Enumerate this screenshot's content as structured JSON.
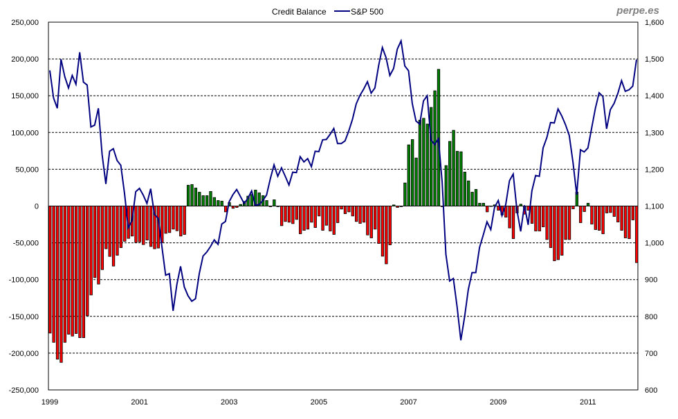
{
  "chart_data": {
    "type": "bar+line",
    "title": "",
    "watermark": "perpe.es",
    "legend": {
      "placement": "top-center",
      "entries": [
        "Credit Balance",
        "S&P 500"
      ]
    },
    "grid": {
      "horizontal": true,
      "style": "dashed"
    },
    "x_interval": "month",
    "x_start": "1999-01",
    "x_ticks": [
      "1999",
      "2001",
      "2003",
      "2005",
      "2007",
      "2009",
      "2011"
    ],
    "y_left": {
      "range": [
        -250000,
        250000
      ],
      "step": 50000,
      "ticks": [
        "250,000",
        "200,000",
        "150,000",
        "100,000",
        "50,000",
        "0",
        "-50,000",
        "-100,000",
        "-150,000",
        "-200,000",
        "-250,000"
      ]
    },
    "y_right": {
      "range": [
        600,
        1600
      ],
      "step": 100,
      "ticks": [
        "1,600",
        "1,500",
        "1,400",
        "1,300",
        "1,200",
        "1,100",
        "1,000",
        "900",
        "800",
        "700",
        "600"
      ]
    },
    "colors": {
      "positive_bar": "#008000",
      "negative_bar": "#ff0000",
      "line": "#000080"
    },
    "series": [
      {
        "name": "Credit Balance",
        "type": "bar",
        "axis": "left",
        "values": [
          -172700,
          -185300,
          -208200,
          -212600,
          -185300,
          -174300,
          -176800,
          -173300,
          -179000,
          -179000,
          -149200,
          -120900,
          -97300,
          -106100,
          -86400,
          -58100,
          -68500,
          -81600,
          -66900,
          -56500,
          -48000,
          -44000,
          -40800,
          -49600,
          -48700,
          -52400,
          -46200,
          -55000,
          -58100,
          -57100,
          -49600,
          -37100,
          -36100,
          -31400,
          -33600,
          -40800,
          -38600,
          28300,
          29200,
          24500,
          18800,
          14100,
          14100,
          19800,
          11600,
          7500,
          6600,
          -7900,
          4700,
          -3100,
          -1900,
          2200,
          6300,
          13500,
          15700,
          21700,
          17900,
          14100,
          7500,
          -900,
          8500,
          -900,
          -26700,
          -21000,
          -22000,
          -23900,
          -18200,
          -37700,
          -33000,
          -31400,
          -22000,
          -29200,
          -13500,
          -33000,
          -26100,
          -33900,
          -38600,
          -22600,
          -4100,
          -10400,
          -7900,
          -13500,
          -21000,
          -23600,
          -22000,
          -39300,
          -43300,
          -31400,
          -50900,
          -68200,
          -78600,
          -52800,
          1500,
          -1900,
          -900,
          31400,
          83200,
          90400,
          65300,
          116800,
          119300,
          111500,
          134100,
          156700,
          185900,
          -900,
          55000,
          87900,
          103000,
          74400,
          73800,
          46200,
          34200,
          18800,
          22600,
          3800,
          3800,
          -7900,
          -600,
          1600,
          -5700,
          -12000,
          -15100,
          -29800,
          -44300,
          -9400,
          2500,
          -11000,
          -5700,
          -23600,
          -33900,
          -33900,
          -28300,
          -45500,
          -56500,
          -74400,
          -72900,
          -66900,
          -45500,
          -45500,
          -3800,
          19000,
          -22600,
          -7500,
          3800,
          -24500,
          -32000,
          -33000,
          -37700,
          -9400,
          -8800,
          -14100,
          -21700,
          -33000,
          -43300,
          -44300,
          -18800,
          -76900
        ]
      },
      {
        "name": "S&P 500",
        "type": "line",
        "axis": "right",
        "values": [
          1469,
          1394,
          1366,
          1499,
          1452,
          1421,
          1455,
          1431,
          1518,
          1437,
          1429,
          1315,
          1320,
          1366,
          1240,
          1160,
          1249,
          1256,
          1224,
          1211,
          1134,
          1041,
          1060,
          1139,
          1148,
          1130,
          1107,
          1147,
          1077,
          1067,
          990,
          912,
          916,
          815,
          886,
          936,
          880,
          856,
          841,
          848,
          917,
          964,
          975,
          990,
          1008,
          996,
          1051,
          1058,
          1112,
          1131,
          1145,
          1126,
          1107,
          1121,
          1141,
          1102,
          1104,
          1115,
          1130,
          1174,
          1212,
          1181,
          1204,
          1181,
          1157,
          1192,
          1191,
          1234,
          1220,
          1229,
          1207,
          1249,
          1248,
          1280,
          1281,
          1295,
          1311,
          1270,
          1270,
          1277,
          1304,
          1336,
          1378,
          1401,
          1418,
          1438,
          1407,
          1421,
          1482,
          1531,
          1503,
          1455,
          1474,
          1527,
          1549,
          1481,
          1468,
          1379,
          1331,
          1323,
          1386,
          1400,
          1280,
          1267,
          1283,
          1165,
          969,
          896,
          903,
          826,
          735,
          798,
          873,
          919,
          919,
          987,
          1021,
          1057,
          1036,
          1096,
          1115,
          1074,
          1104,
          1169,
          1187,
          1089,
          1031,
          1102,
          1049,
          1141,
          1183,
          1181,
          1258,
          1286,
          1327,
          1326,
          1364,
          1345,
          1321,
          1292,
          1219,
          1131,
          1253,
          1247,
          1258,
          1312,
          1366,
          1408,
          1398,
          1310,
          1362,
          1379,
          1406,
          1441,
          1412,
          1416,
          1426,
          1498
        ]
      }
    ]
  }
}
